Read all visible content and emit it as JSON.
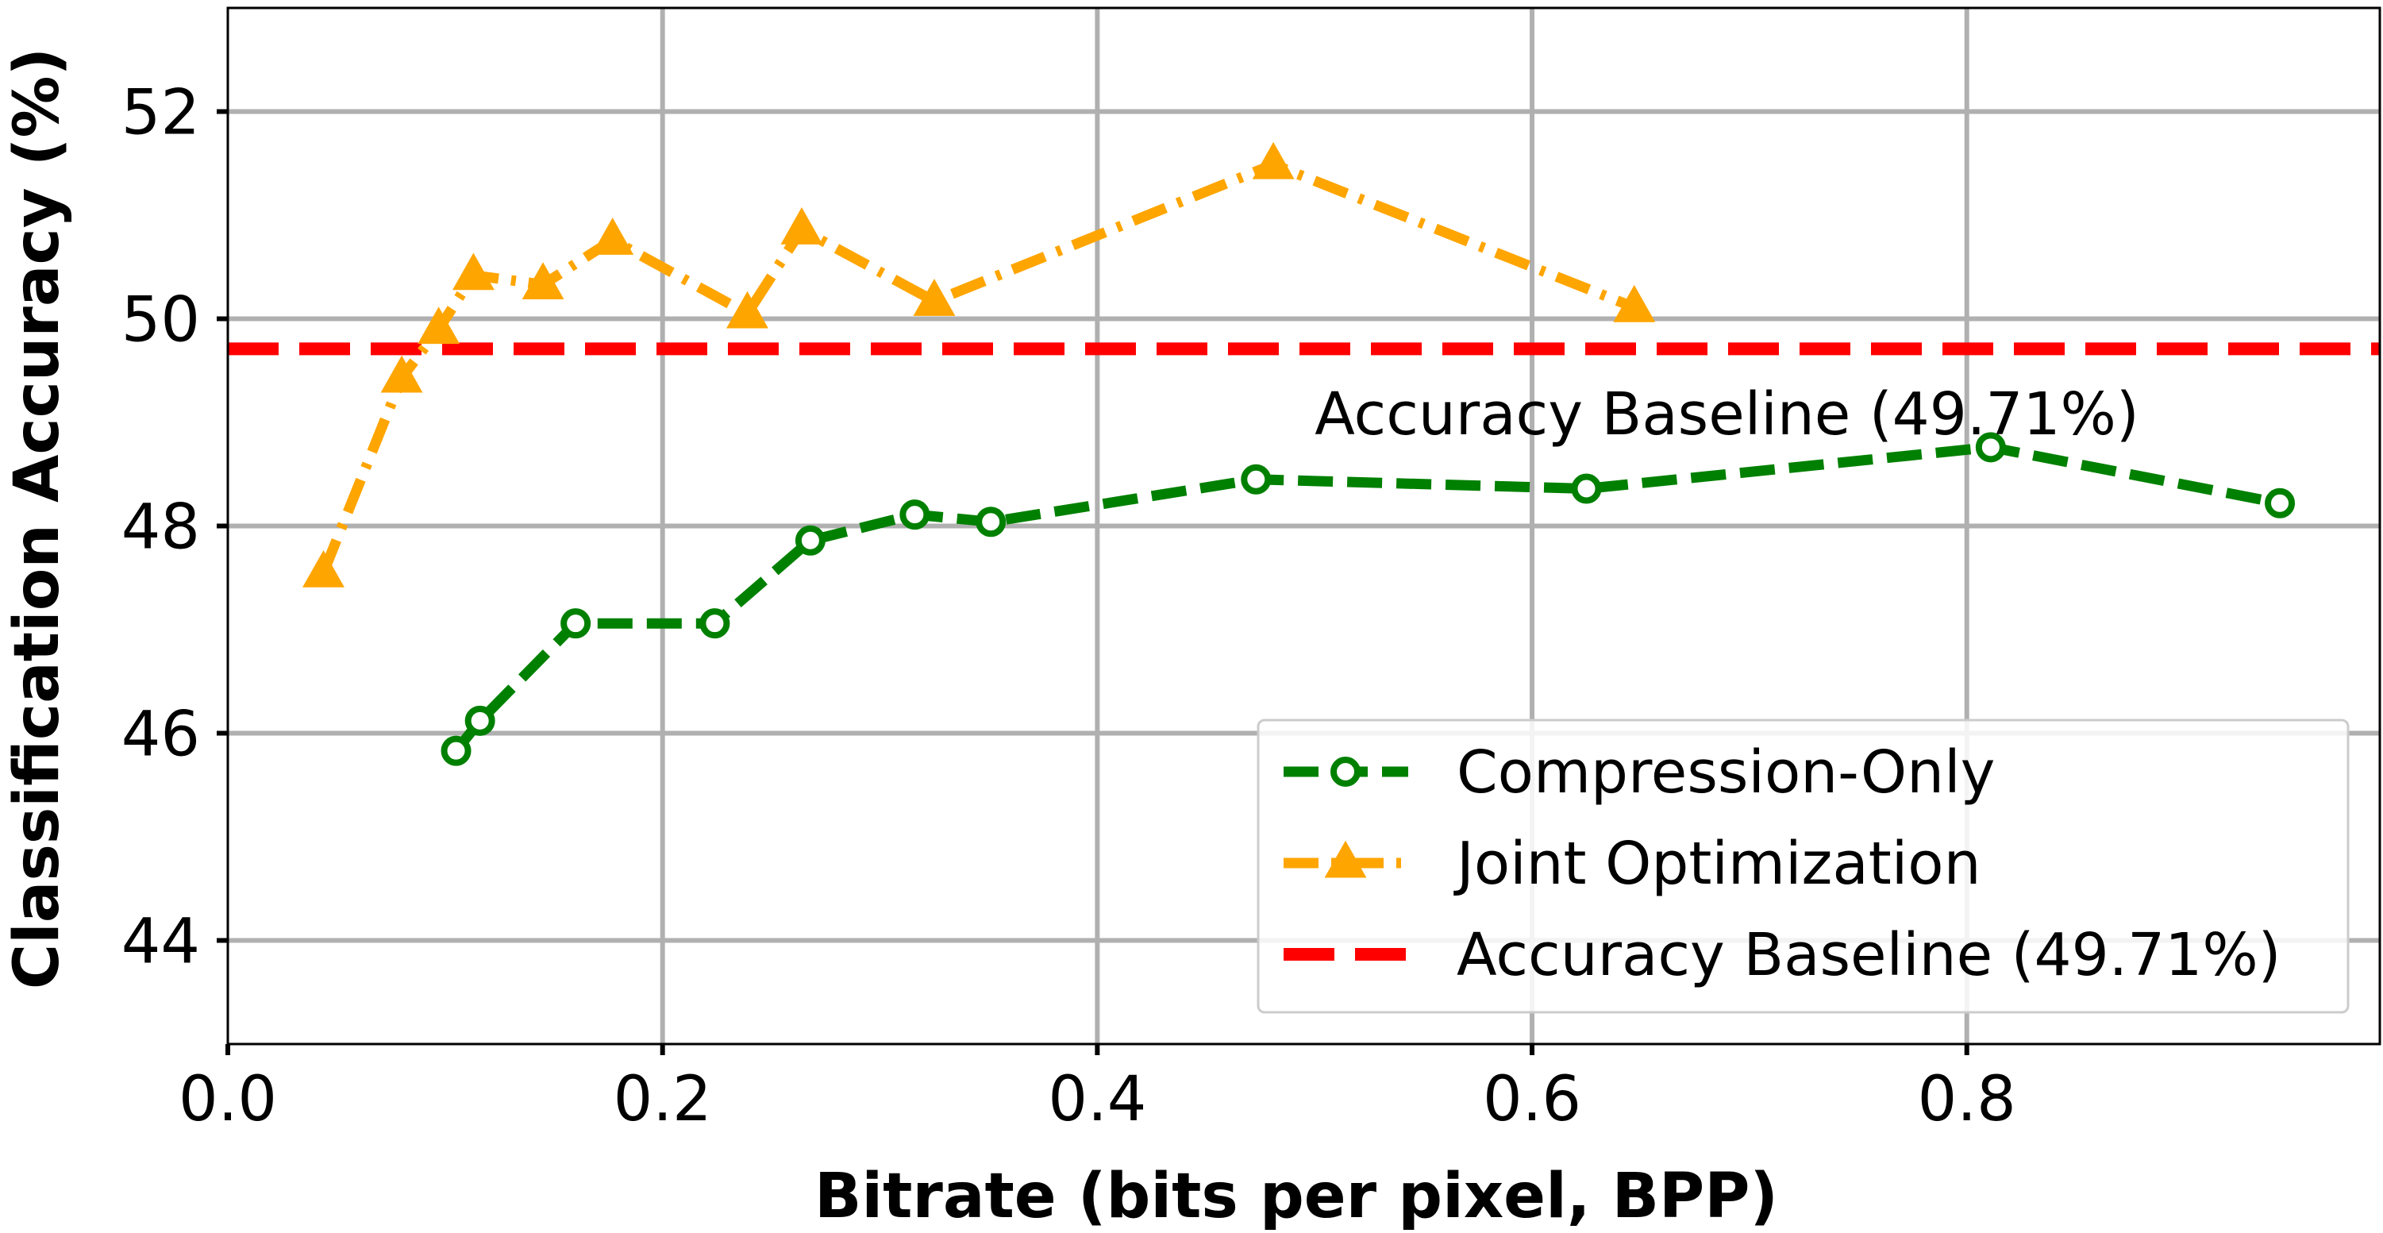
{
  "chart_data": {
    "type": "line",
    "title": "",
    "xlabel": "Bitrate (bits per pixel, BPP)",
    "ylabel": "Classification Accuracy (%)",
    "xlim": [
      0.0,
      0.99
    ],
    "ylim": [
      43.0,
      53.0
    ],
    "xticks": [
      0.0,
      0.2,
      0.4,
      0.6,
      0.8
    ],
    "xtick_labels": [
      "0.0",
      "0.2",
      "0.4",
      "0.6",
      "0.8"
    ],
    "yticks": [
      44,
      46,
      48,
      50,
      52
    ],
    "ytick_labels": [
      "44",
      "46",
      "48",
      "50",
      "52"
    ],
    "grid": true,
    "legend_position": "bottom-right",
    "series": [
      {
        "name": "Compression-Only",
        "color": "#008000",
        "line_style": "dashed",
        "marker": "circle",
        "x": [
          0.105,
          0.116,
          0.16,
          0.224,
          0.268,
          0.316,
          0.351,
          0.473,
          0.625,
          0.811,
          0.944
        ],
        "y": [
          45.83,
          46.12,
          47.06,
          47.06,
          47.86,
          48.11,
          48.04,
          48.45,
          48.36,
          48.76,
          48.22
        ]
      },
      {
        "name": "Joint Optimization",
        "color": "#FFA500",
        "line_style": "dashdot",
        "marker": "triangle",
        "x": [
          0.044,
          0.08,
          0.097,
          0.113,
          0.145,
          0.177,
          0.239,
          0.264,
          0.325,
          0.481,
          0.647
        ],
        "y": [
          47.55,
          49.43,
          49.9,
          50.42,
          50.33,
          50.76,
          50.05,
          50.86,
          50.17,
          51.49,
          50.11
        ]
      }
    ],
    "baseline": {
      "name": "Accuracy Baseline (49.71%)",
      "value": 49.71,
      "color": "#FF0000",
      "line_style": "dashed"
    },
    "annotations": [
      {
        "text": "Accuracy Baseline (49.71%)",
        "x": 0.5,
        "y": 49.1
      }
    ]
  }
}
